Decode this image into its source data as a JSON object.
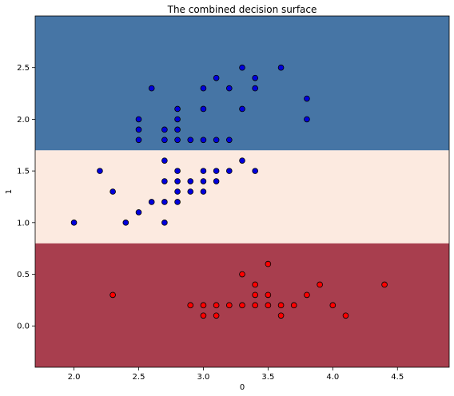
{
  "chart_data": {
    "type": "scatter",
    "title": "The combined decision surface",
    "xlabel": "0",
    "ylabel": "1",
    "xlim": [
      1.7,
      4.9
    ],
    "ylim": [
      -0.4,
      3.0
    ],
    "xticks": [
      2.0,
      2.5,
      3.0,
      3.5,
      4.0,
      4.5
    ],
    "xtick_labels": [
      "2.0",
      "2.5",
      "3.0",
      "3.5",
      "4.0",
      "4.5"
    ],
    "yticks": [
      0.0,
      0.5,
      1.0,
      1.5,
      2.0,
      2.5
    ],
    "ytick_labels": [
      "0.0",
      "0.5",
      "1.0",
      "1.5",
      "2.0",
      "2.5"
    ],
    "grid": false,
    "legend": "none",
    "regions": [
      {
        "from": -0.4,
        "to": 0.8,
        "color": "#a83e4e"
      },
      {
        "from": 0.8,
        "to": 1.7,
        "color": "#fceae0"
      },
      {
        "from": 1.7,
        "to": 3.0,
        "color": "#4675a5"
      }
    ],
    "series": [
      {
        "color": "#ff0000",
        "points": [
          [
            2.3,
            0.3
          ],
          [
            2.9,
            0.2
          ],
          [
            3.0,
            0.2
          ],
          [
            3.0,
            0.1
          ],
          [
            3.1,
            0.2
          ],
          [
            3.1,
            0.1
          ],
          [
            3.2,
            0.2
          ],
          [
            3.3,
            0.2
          ],
          [
            3.3,
            0.5
          ],
          [
            3.4,
            0.2
          ],
          [
            3.4,
            0.3
          ],
          [
            3.4,
            0.4
          ],
          [
            3.5,
            0.2
          ],
          [
            3.5,
            0.3
          ],
          [
            3.5,
            0.6
          ],
          [
            3.6,
            0.2
          ],
          [
            3.6,
            0.1
          ],
          [
            3.7,
            0.2
          ],
          [
            3.8,
            0.3
          ],
          [
            3.9,
            0.4
          ],
          [
            4.0,
            0.2
          ],
          [
            4.1,
            0.1
          ],
          [
            4.4,
            0.4
          ]
        ]
      },
      {
        "color": "#0000dd",
        "points": [
          [
            2.0,
            1.0
          ],
          [
            2.2,
            1.5
          ],
          [
            2.3,
            1.3
          ],
          [
            2.4,
            1.0
          ],
          [
            2.5,
            1.1
          ],
          [
            2.6,
            1.2
          ],
          [
            2.7,
            1.0
          ],
          [
            2.7,
            1.2
          ],
          [
            2.7,
            1.4
          ],
          [
            2.7,
            1.6
          ],
          [
            2.8,
            1.2
          ],
          [
            2.8,
            1.3
          ],
          [
            2.8,
            1.4
          ],
          [
            2.8,
            1.5
          ],
          [
            2.9,
            1.3
          ],
          [
            2.9,
            1.4
          ],
          [
            3.0,
            1.3
          ],
          [
            3.0,
            1.4
          ],
          [
            3.0,
            1.5
          ],
          [
            3.1,
            1.4
          ],
          [
            3.1,
            1.5
          ],
          [
            3.2,
            1.5
          ],
          [
            3.3,
            1.6
          ],
          [
            3.4,
            1.5
          ],
          [
            2.5,
            1.8
          ],
          [
            2.5,
            1.9
          ],
          [
            2.5,
            2.0
          ],
          [
            2.6,
            2.3
          ],
          [
            2.7,
            1.8
          ],
          [
            2.7,
            1.9
          ],
          [
            2.8,
            1.8
          ],
          [
            2.8,
            1.9
          ],
          [
            2.8,
            2.0
          ],
          [
            2.8,
            2.1
          ],
          [
            2.9,
            1.8
          ],
          [
            3.0,
            1.8
          ],
          [
            3.0,
            2.1
          ],
          [
            3.0,
            2.3
          ],
          [
            3.1,
            1.8
          ],
          [
            3.1,
            2.4
          ],
          [
            3.2,
            1.8
          ],
          [
            3.2,
            2.3
          ],
          [
            3.3,
            2.1
          ],
          [
            3.3,
            2.5
          ],
          [
            3.4,
            2.3
          ],
          [
            3.4,
            2.4
          ],
          [
            3.6,
            2.5
          ],
          [
            3.8,
            2.2
          ],
          [
            3.8,
            2.0
          ]
        ]
      }
    ]
  }
}
